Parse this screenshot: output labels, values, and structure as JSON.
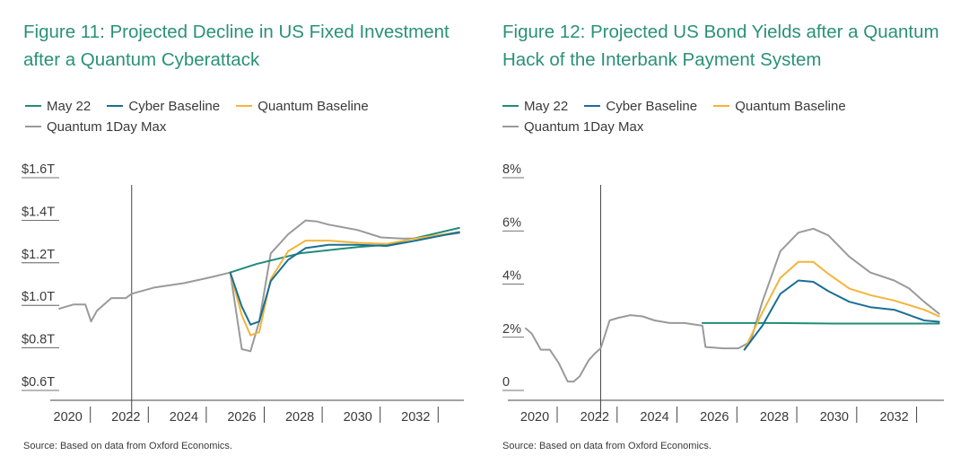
{
  "colors": {
    "title": "#2a9177",
    "may22": "#1f8c7a",
    "cyber": "#1a6f95",
    "quantum": "#f2b53a",
    "max": "#9a9a9a",
    "axis": "#444444"
  },
  "left": {
    "title_line1": "Figure 11: Projected Decline in US Fixed Investment",
    "title_line2": "after a Quantum Cyberattack",
    "source": "Source: Based on data from Oxford Economics."
  },
  "right": {
    "title_line1": "Figure 12: Projected US Bond Yields after a Quantum",
    "title_line2": "Hack of the Interbank Payment System",
    "source": "Source: Based on data from Oxford Economics."
  },
  "legend": {
    "may22": "May 22",
    "cyber": "Cyber Baseline",
    "quantum": "Quantum Baseline",
    "max": "Quantum 1Day Max"
  },
  "chart_data": [
    {
      "type": "line",
      "title": "Figure 11: Projected Decline in US Fixed Investment after a Quantum Cyberattack",
      "xlabel": "",
      "ylabel": "",
      "xlim": [
        2019.7,
        2033.6
      ],
      "ylim": [
        0.6,
        1.6
      ],
      "x_ticks": [
        2020,
        2022,
        2024,
        2026,
        2028,
        2030,
        2032
      ],
      "x_tick_labels": [
        "2020",
        "2022",
        "2024",
        "2026",
        "2028",
        "2030",
        "2032"
      ],
      "y_ticks": [
        0.6,
        0.8,
        1.0,
        1.2,
        1.4,
        1.6
      ],
      "y_tick_labels": [
        "$0.6T",
        "$0.8T",
        "$1.0T",
        "$1.2T",
        "$1.4T",
        "$1.6T"
      ],
      "vline_x": 2022.2,
      "series": [
        {
          "name": "May 22",
          "color_key": "may22",
          "x": [
            2025.6,
            2026.5,
            2028.0,
            2030.0,
            2031.0,
            2033.5
          ],
          "y": [
            1.15,
            1.19,
            1.24,
            1.27,
            1.28,
            1.36
          ]
        },
        {
          "name": "Cyber Baseline",
          "color_key": "cyber",
          "x": [
            2025.6,
            2026.0,
            2026.3,
            2026.6,
            2027.0,
            2027.6,
            2028.2,
            2029.0,
            2030.0,
            2031.0,
            2032.0,
            2033.5
          ],
          "y": [
            1.15,
            0.99,
            0.905,
            0.92,
            1.11,
            1.21,
            1.265,
            1.28,
            1.28,
            1.275,
            1.3,
            1.34
          ]
        },
        {
          "name": "Quantum Baseline",
          "color_key": "quantum",
          "x": [
            2025.6,
            2026.0,
            2026.3,
            2026.6,
            2027.0,
            2027.6,
            2028.2,
            2029.0,
            2030.0,
            2031.0,
            2032.0,
            2033.5
          ],
          "y": [
            1.15,
            0.95,
            0.855,
            0.87,
            1.12,
            1.25,
            1.3,
            1.3,
            1.29,
            1.285,
            1.31,
            1.34
          ]
        },
        {
          "name": "Quantum 1Day Max",
          "color_key": "max",
          "x": [
            2019.7,
            2020.2,
            2020.6,
            2020.8,
            2021.0,
            2021.5,
            2022.0,
            2022.2,
            2023.0,
            2024.0,
            2025.0,
            2025.6,
            2026.0,
            2026.3,
            2026.6,
            2027.0,
            2027.6,
            2028.2,
            2028.6,
            2029.0,
            2030.0,
            2030.8,
            2031.5,
            2032.0,
            2033.5
          ],
          "y": [
            0.98,
            1.0,
            1.0,
            0.92,
            0.97,
            1.03,
            1.03,
            1.05,
            1.08,
            1.1,
            1.13,
            1.15,
            0.79,
            0.78,
            0.92,
            1.24,
            1.33,
            1.395,
            1.39,
            1.375,
            1.35,
            1.315,
            1.31,
            1.31,
            1.335
          ]
        }
      ]
    },
    {
      "type": "line",
      "title": "Figure 12: Projected US Bond Yields after a Quantum Hack of the Interbank Payment System",
      "xlabel": "",
      "ylabel": "",
      "xlim": [
        2019.7,
        2033.6
      ],
      "ylim": [
        0,
        8
      ],
      "x_ticks": [
        2020,
        2022,
        2024,
        2026,
        2028,
        2030,
        2032
      ],
      "x_tick_labels": [
        "2020",
        "2022",
        "2024",
        "2026",
        "2028",
        "2030",
        "2032"
      ],
      "y_ticks": [
        0,
        2,
        4,
        6,
        8
      ],
      "y_tick_labels": [
        "0",
        "2%",
        "4%",
        "6%",
        "8%"
      ],
      "vline_x": 2022.2,
      "series": [
        {
          "name": "May 22",
          "color_key": "may22",
          "x": [
            2025.6,
            2026.5,
            2028.0,
            2030.0,
            2032.0,
            2033.5
          ],
          "y": [
            2.5,
            2.5,
            2.5,
            2.48,
            2.48,
            2.48
          ]
        },
        {
          "name": "Cyber Baseline",
          "color_key": "cyber",
          "x": [
            2027.0,
            2027.6,
            2028.2,
            2028.8,
            2029.3,
            2029.8,
            2030.5,
            2031.2,
            2032.0,
            2033.0,
            2033.5
          ],
          "y": [
            1.5,
            2.4,
            3.6,
            4.1,
            4.05,
            3.7,
            3.3,
            3.1,
            3.0,
            2.6,
            2.55
          ]
        },
        {
          "name": "Quantum Baseline",
          "color_key": "quantum",
          "x": [
            2027.0,
            2027.6,
            2028.2,
            2028.8,
            2029.3,
            2029.8,
            2030.5,
            2031.2,
            2032.0,
            2033.0,
            2033.5
          ],
          "y": [
            1.5,
            2.9,
            4.2,
            4.8,
            4.8,
            4.35,
            3.8,
            3.55,
            3.35,
            3.0,
            2.75
          ]
        },
        {
          "name": "Quantum 1Day Max",
          "color_key": "max",
          "x": [
            2019.7,
            2019.9,
            2020.2,
            2020.5,
            2020.8,
            2021.1,
            2021.3,
            2021.5,
            2021.8,
            2022.0,
            2022.2,
            2022.5,
            2022.8,
            2023.2,
            2023.6,
            2024.0,
            2024.5,
            2025.0,
            2025.6,
            2025.7,
            2026.3,
            2026.8,
            2027.2,
            2027.6,
            2028.2,
            2028.8,
            2029.3,
            2029.8,
            2030.5,
            2031.2,
            2032.0,
            2032.5,
            2033.0,
            2033.5
          ],
          "y": [
            2.3,
            2.1,
            1.5,
            1.5,
            1.0,
            0.3,
            0.3,
            0.5,
            1.1,
            1.35,
            1.55,
            2.6,
            2.7,
            2.8,
            2.75,
            2.6,
            2.5,
            2.5,
            2.4,
            1.6,
            1.55,
            1.55,
            1.8,
            3.3,
            5.2,
            5.9,
            6.05,
            5.8,
            5.0,
            4.4,
            4.1,
            3.8,
            3.3,
            2.85
          ]
        }
      ]
    }
  ]
}
